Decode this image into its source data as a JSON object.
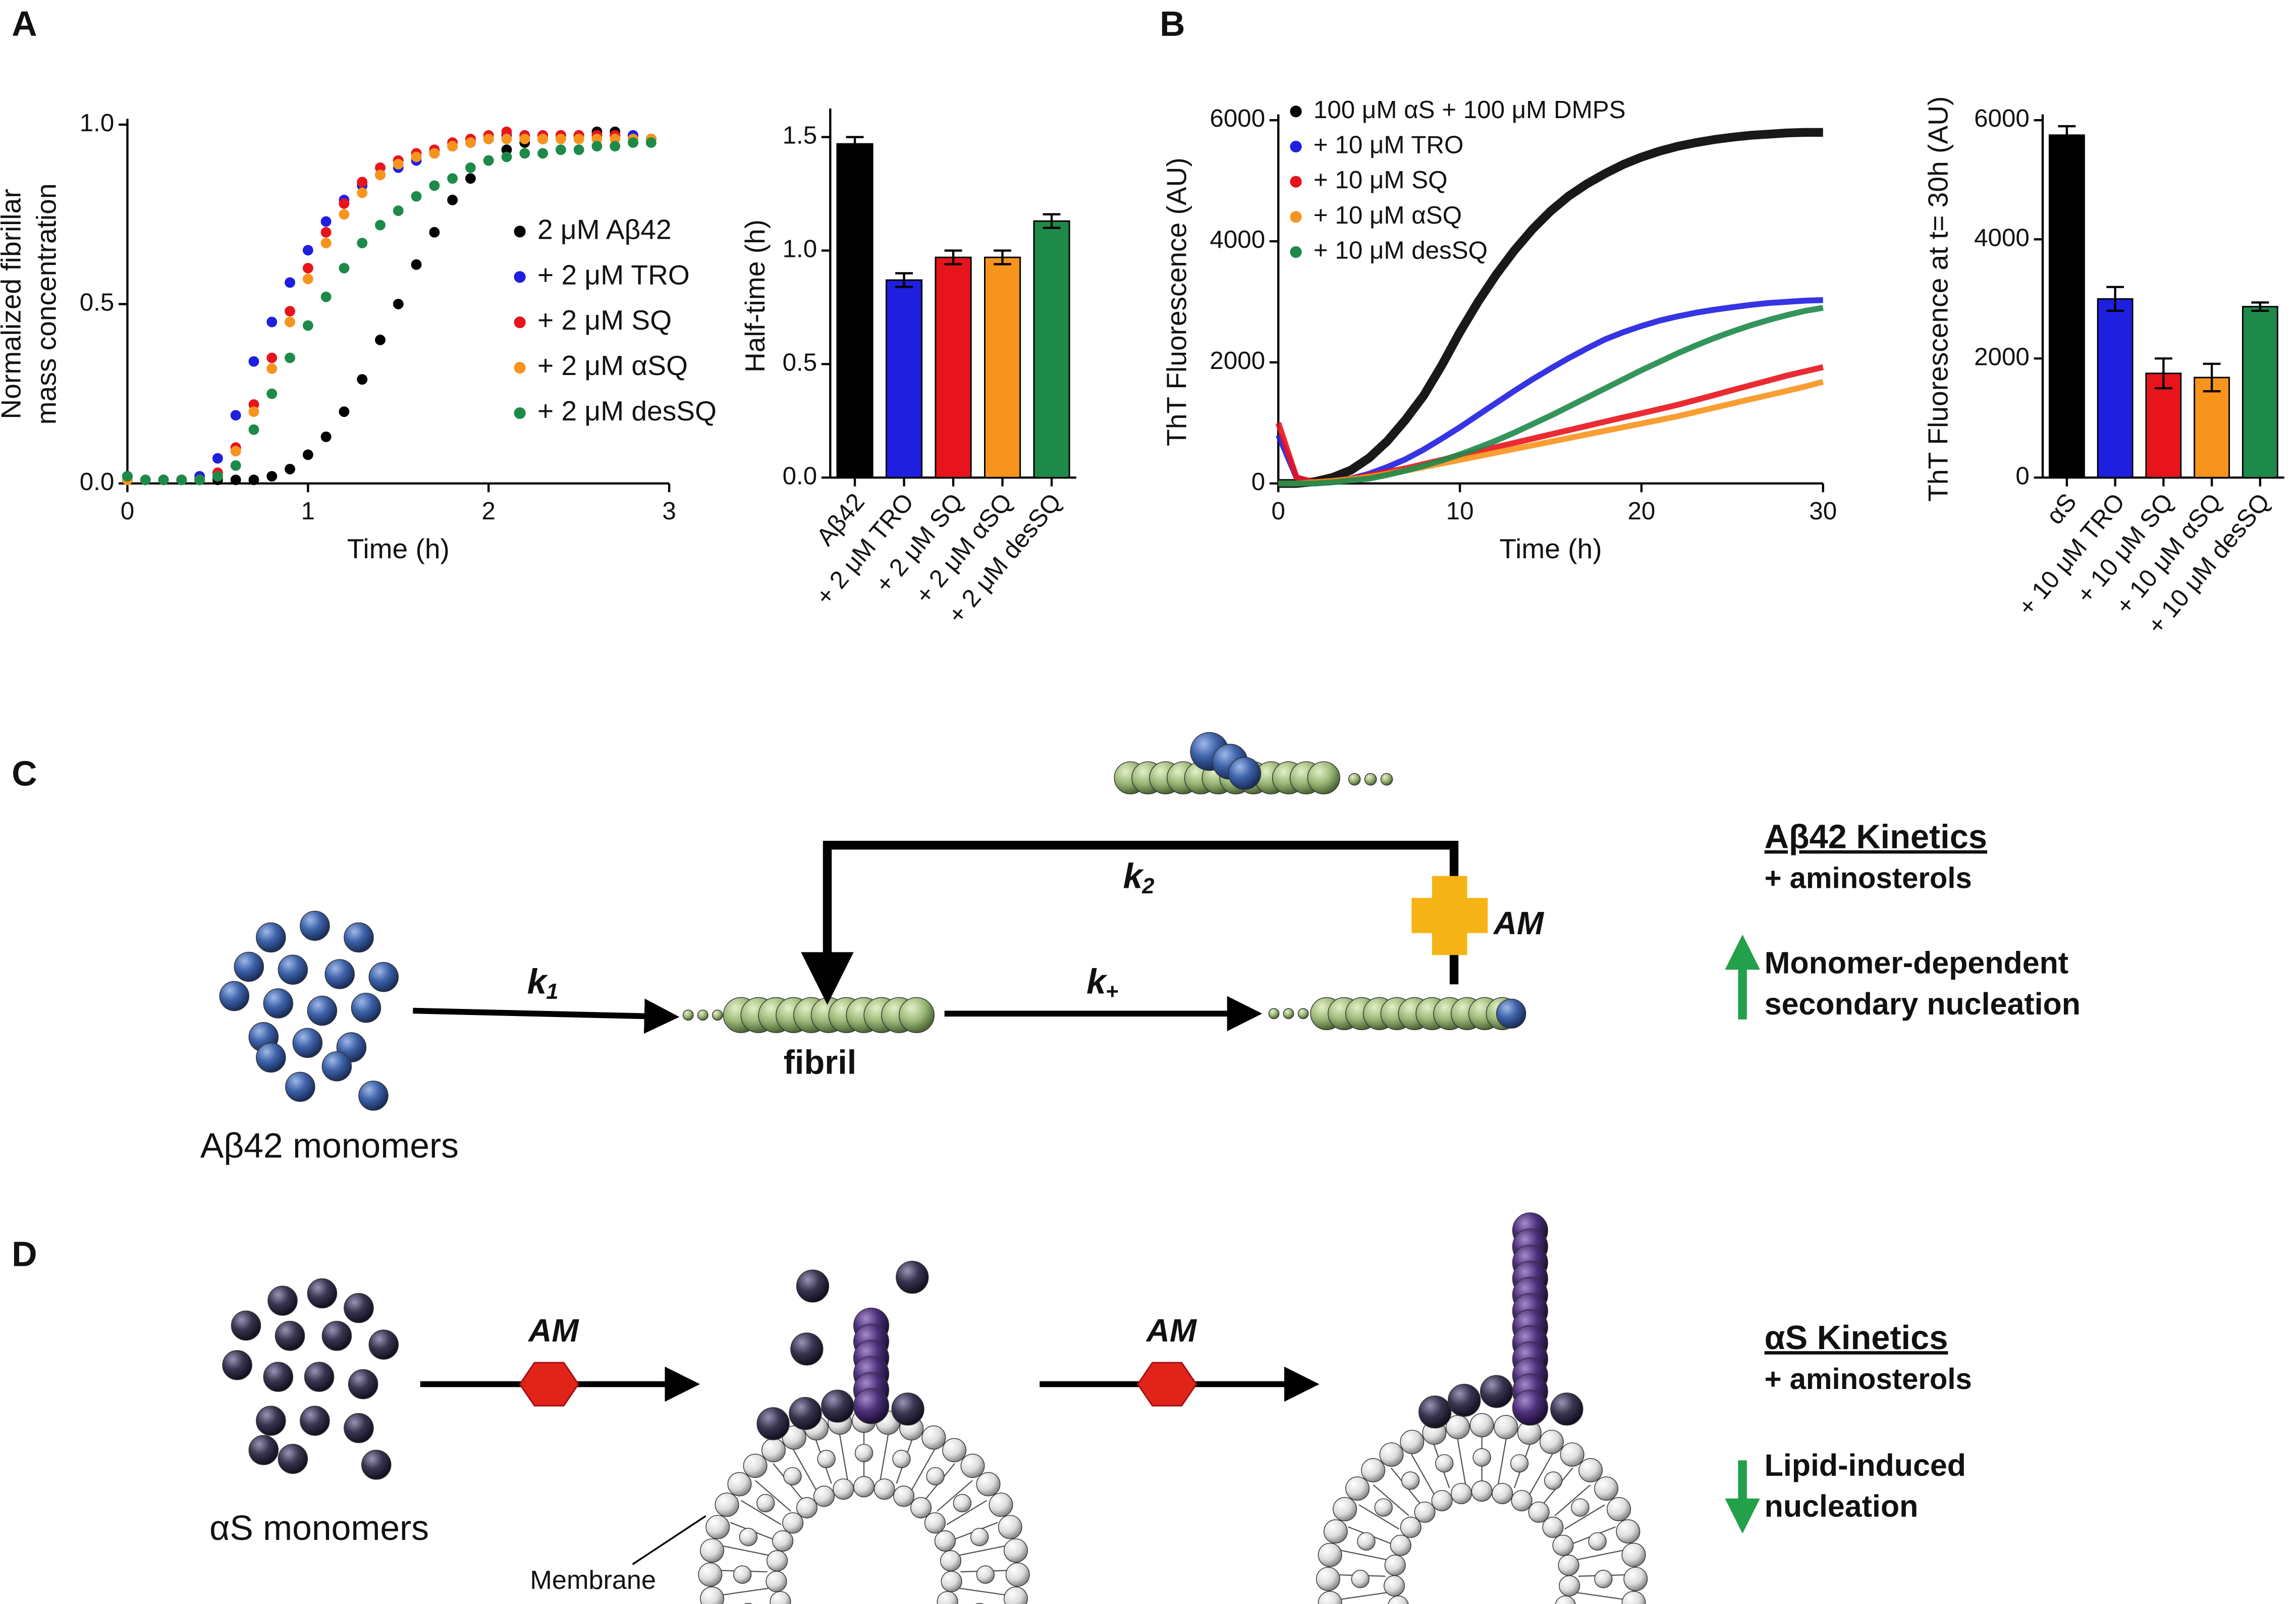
{
  "panel_labels": [
    "A",
    "B",
    "C",
    "D"
  ],
  "chart_data": [
    {
      "type": "scatter",
      "xlabel": "Time (h)",
      "ylabel": [
        "Normalized fibrillar",
        "mass concentration"
      ],
      "x": [
        0,
        0.1,
        0.2,
        0.3,
        0.4,
        0.5,
        0.6,
        0.7,
        0.8,
        0.9,
        1.0,
        1.1,
        1.2,
        1.3,
        1.4,
        1.5,
        1.6,
        1.7,
        1.8,
        1.9,
        2.0,
        2.1,
        2.2,
        2.3,
        2.4,
        2.5,
        2.6,
        2.7,
        2.8,
        2.9
      ],
      "xlim": [
        0,
        3
      ],
      "ylim": [
        0,
        1
      ],
      "xticks": [
        0,
        1,
        2,
        3
      ],
      "yticks": [
        {
          "value": 0,
          "label": "0.0"
        },
        {
          "value": 0.5,
          "label": "0.5"
        },
        {
          "value": 1,
          "label": "1.0"
        }
      ],
      "series": [
        {
          "name": "2 μM Aβ42",
          "color": "#000000",
          "values": [
            0.02,
            0.01,
            0.01,
            0.01,
            0.01,
            0.01,
            0.01,
            0.01,
            0.02,
            0.04,
            0.08,
            0.13,
            0.2,
            0.29,
            0.4,
            0.5,
            0.61,
            0.7,
            0.79,
            0.85,
            0.9,
            0.93,
            0.95,
            0.96,
            0.97,
            0.97,
            0.98,
            0.98,
            0.97,
            0.96
          ]
        },
        {
          "name": "+ 2 μM TRO",
          "color": "#1f1fe0",
          "values": [
            0.02,
            0.01,
            0.01,
            0.01,
            0.02,
            0.07,
            0.19,
            0.34,
            0.45,
            0.56,
            0.65,
            0.73,
            0.79,
            0.83,
            0.86,
            0.88,
            0.9,
            0.92,
            0.94,
            0.95,
            0.96,
            0.97,
            0.97,
            0.97,
            0.97,
            0.97,
            0.97,
            0.97,
            0.97,
            0.96
          ]
        },
        {
          "name": "+ 2 μM SQ",
          "color": "#e8141c",
          "values": [
            0.01,
            0.01,
            0.01,
            0.01,
            0.01,
            0.03,
            0.1,
            0.22,
            0.35,
            0.48,
            0.6,
            0.7,
            0.78,
            0.84,
            0.88,
            0.9,
            0.92,
            0.93,
            0.95,
            0.96,
            0.97,
            0.98,
            0.97,
            0.97,
            0.97,
            0.97,
            0.97,
            0.97,
            0.96,
            0.96
          ]
        },
        {
          "name": "+ 2 μM αSQ",
          "color": "#f7941d",
          "values": [
            0.01,
            0.01,
            0.01,
            0.01,
            0.01,
            0.02,
            0.09,
            0.2,
            0.32,
            0.45,
            0.57,
            0.67,
            0.75,
            0.81,
            0.86,
            0.89,
            0.91,
            0.92,
            0.94,
            0.95,
            0.96,
            0.96,
            0.96,
            0.96,
            0.96,
            0.96,
            0.96,
            0.96,
            0.96,
            0.96
          ]
        },
        {
          "name": "+ 2 μM desSQ",
          "color": "#1e8a4a",
          "values": [
            0.02,
            0.01,
            0.01,
            0.01,
            0.01,
            0.02,
            0.05,
            0.15,
            0.25,
            0.35,
            0.44,
            0.52,
            0.6,
            0.67,
            0.72,
            0.76,
            0.8,
            0.83,
            0.85,
            0.88,
            0.9,
            0.91,
            0.92,
            0.92,
            0.93,
            0.93,
            0.94,
            0.94,
            0.95,
            0.95
          ]
        }
      ]
    },
    {
      "type": "bar",
      "ylabel": "Half-time (h)",
      "categories": [
        "Aβ42",
        "+ 2 μM TRO",
        "+ 2 μM SQ",
        "+ 2 μM αSQ",
        "+ 2 μM desSQ"
      ],
      "values": [
        1.47,
        0.87,
        0.97,
        0.97,
        1.13
      ],
      "errors": [
        0.03,
        0.03,
        0.03,
        0.03,
        0.03
      ],
      "colors": [
        "#000000",
        "#1f1fe0",
        "#e8141c",
        "#f7941d",
        "#1e8a4a"
      ],
      "ylim": [
        0,
        1.6
      ],
      "yticks": [
        {
          "value": 0,
          "label": "0.0"
        },
        {
          "value": 0.5,
          "label": "0.5"
        },
        {
          "value": 1,
          "label": "1.0"
        },
        {
          "value": 1.5,
          "label": "1.5"
        }
      ]
    },
    {
      "type": "line",
      "xlabel": "Time (h)",
      "ylabel": "ThT Fluorescence (AU)",
      "x": [
        0,
        1,
        2,
        3,
        4,
        5,
        6,
        7,
        8,
        9,
        10,
        11,
        12,
        13,
        14,
        15,
        16,
        17,
        18,
        19,
        20,
        21,
        22,
        23,
        24,
        25,
        26,
        27,
        28,
        29,
        30
      ],
      "xlim": [
        0,
        30
      ],
      "ylim": [
        0,
        6000
      ],
      "xticks": [
        0,
        10,
        20,
        30
      ],
      "yticks": [
        0,
        2000,
        4000,
        6000
      ],
      "series": [
        {
          "name": "100 μM αS + 100 μM DMPS",
          "color": "#000000",
          "values": [
            0,
            0,
            30,
            100,
            220,
            420,
            700,
            1050,
            1450,
            1950,
            2500,
            3000,
            3450,
            3850,
            4200,
            4500,
            4750,
            4950,
            5120,
            5270,
            5390,
            5490,
            5570,
            5630,
            5680,
            5720,
            5750,
            5770,
            5790,
            5800,
            5800
          ]
        },
        {
          "name": "+ 10 μM TRO",
          "color": "#1f1fe0",
          "values": [
            800,
            100,
            0,
            30,
            80,
            160,
            270,
            400,
            560,
            740,
            930,
            1130,
            1330,
            1530,
            1720,
            1900,
            2070,
            2230,
            2380,
            2500,
            2600,
            2690,
            2760,
            2820,
            2870,
            2910,
            2950,
            2980,
            3000,
            3020,
            3030
          ]
        },
        {
          "name": "+ 10 μM SQ",
          "color": "#e8141c",
          "values": [
            1000,
            100,
            20,
            40,
            80,
            130,
            190,
            250,
            320,
            390,
            460,
            530,
            600,
            670,
            740,
            810,
            880,
            950,
            1020,
            1090,
            1160,
            1230,
            1300,
            1380,
            1460,
            1540,
            1620,
            1700,
            1780,
            1850,
            1920
          ]
        },
        {
          "name": "+ 10 μM αSQ",
          "color": "#f7941d",
          "values": [
            0,
            0,
            20,
            40,
            70,
            110,
            160,
            210,
            270,
            330,
            390,
            450,
            510,
            570,
            630,
            690,
            750,
            810,
            870,
            930,
            990,
            1050,
            1110,
            1180,
            1250,
            1320,
            1390,
            1460,
            1530,
            1600,
            1680
          ]
        },
        {
          "name": "+ 10 μM desSQ",
          "color": "#1e8a4a",
          "values": [
            0,
            0,
            0,
            20,
            50,
            80,
            140,
            210,
            290,
            380,
            480,
            590,
            710,
            840,
            980,
            1120,
            1270,
            1420,
            1570,
            1720,
            1870,
            2010,
            2150,
            2280,
            2400,
            2510,
            2610,
            2700,
            2780,
            2850,
            2900
          ]
        }
      ]
    },
    {
      "type": "bar",
      "ylabel": "ThT Fluorescence at t= 30h (AU)",
      "categories": [
        "αS",
        "+ 10 μM TRO",
        "+ 10 μM SQ",
        "+ 10 μM αSQ",
        "+ 10 μM desSQ"
      ],
      "values": [
        5750,
        3000,
        1750,
        1680,
        2870
      ],
      "errors": [
        150,
        200,
        250,
        230,
        70
      ],
      "colors": [
        "#000000",
        "#1f1fe0",
        "#e8141c",
        "#f7941d",
        "#1e8a4a"
      ],
      "ylim": [
        0,
        6000
      ],
      "yticks": [
        0,
        2000,
        4000,
        6000
      ]
    }
  ],
  "diagram_c": {
    "rate_constants": [
      {
        "symbol": "k",
        "subscript": "1"
      },
      {
        "symbol": "k",
        "subscript": "+"
      },
      {
        "symbol": "k",
        "subscript": "2"
      }
    ],
    "fibril": "fibril",
    "monomers": "Aβ42 monomers",
    "modulator": "AM",
    "kinetics_title": "Aβ42 Kinetics",
    "kinetics_subtitle": "+ aminosterols",
    "effect": [
      "Monomer-dependent",
      "secondary nucleation"
    ]
  },
  "diagram_d": {
    "monomers": "αS monomers",
    "modulators": [
      "AM",
      "AM"
    ],
    "membrane": "Membrane",
    "kinetics_title": "αS Kinetics",
    "kinetics_subtitle": "+ aminosterols",
    "effect": [
      "Lipid-induced",
      "nucleation"
    ]
  }
}
